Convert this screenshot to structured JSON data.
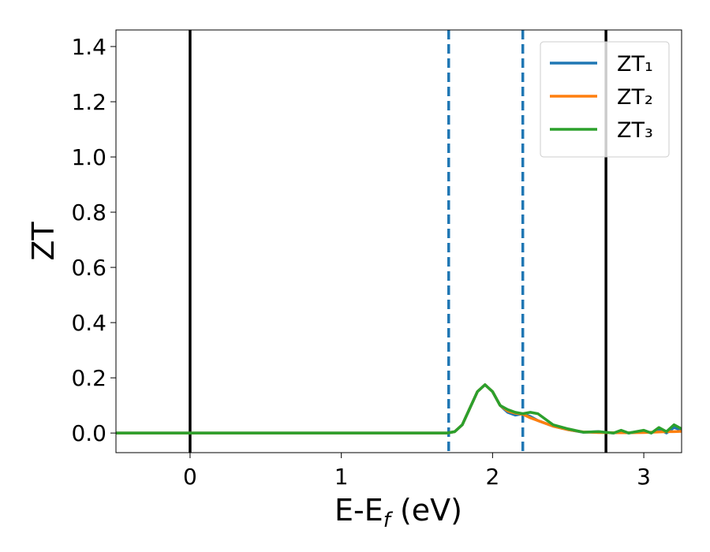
{
  "chart_data": {
    "type": "line",
    "xlabel": [
      "E-E",
      "f",
      " (eV)"
    ],
    "ylabel": "ZT",
    "xlim": [
      -0.49,
      3.25
    ],
    "ylim": [
      -0.071,
      1.46
    ],
    "xticks": [
      0,
      1,
      2,
      3
    ],
    "yticks": [
      {
        "value": 0,
        "label": "0.0"
      },
      0.2,
      0.4,
      0.6,
      0.8,
      {
        "value": 1,
        "label": "1.0"
      },
      1.2,
      1.4
    ],
    "legend": "upper right",
    "x": [
      -0.49,
      0,
      0.5,
      1.0,
      1.5,
      1.7,
      1.75,
      1.8,
      1.85,
      1.9,
      1.95,
      2.0,
      2.05,
      2.1,
      2.15,
      2.2,
      2.25,
      2.3,
      2.35,
      2.4,
      2.5,
      2.6,
      2.7,
      2.8,
      2.85,
      2.9,
      3.0,
      3.05,
      3.1,
      3.15,
      3.2,
      3.25
    ],
    "series": [
      {
        "name": "ZT₁",
        "color": "#1f77b4",
        "values": [
          0,
          0,
          0,
          0,
          0,
          0,
          0.005,
          0.03,
          0.09,
          0.15,
          0.175,
          0.15,
          0.1,
          0.075,
          0.065,
          0.07,
          0.06,
          0.045,
          0.035,
          0.025,
          0.012,
          0.003,
          0.005,
          0,
          0.005,
          0,
          0.008,
          0,
          0.015,
          0,
          0.02,
          0.01
        ]
      },
      {
        "name": "ZT₂",
        "color": "#ff7f0e",
        "values": [
          0,
          0,
          0,
          0,
          0,
          0,
          0.005,
          0.03,
          0.09,
          0.15,
          0.175,
          0.15,
          0.1,
          0.08,
          0.072,
          0.068,
          0.055,
          0.045,
          0.035,
          0.025,
          0.012,
          0.004,
          0.002,
          0.001,
          0.001,
          0.001,
          0.002,
          0.003,
          0.004,
          0.005,
          0.005,
          0.006
        ]
      },
      {
        "name": "ZT₃",
        "color": "#2ca02c",
        "values": [
          0,
          0,
          0,
          0,
          0,
          0,
          0.005,
          0.03,
          0.09,
          0.15,
          0.175,
          0.15,
          0.1,
          0.085,
          0.075,
          0.07,
          0.075,
          0.07,
          0.05,
          0.03,
          0.015,
          0.003,
          0.005,
          0,
          0.01,
          0,
          0.01,
          0,
          0.02,
          0.005,
          0.03,
          0.015
        ]
      }
    ],
    "vlines": [
      {
        "x": 0,
        "color": "#000000",
        "style": "solid"
      },
      {
        "x": 1.71,
        "color": "#1f77b4",
        "style": "dashed"
      },
      {
        "x": 2.2,
        "color": "#1f77b4",
        "style": "dashed"
      },
      {
        "x": 2.75,
        "color": "#000000",
        "style": "solid"
      }
    ]
  }
}
